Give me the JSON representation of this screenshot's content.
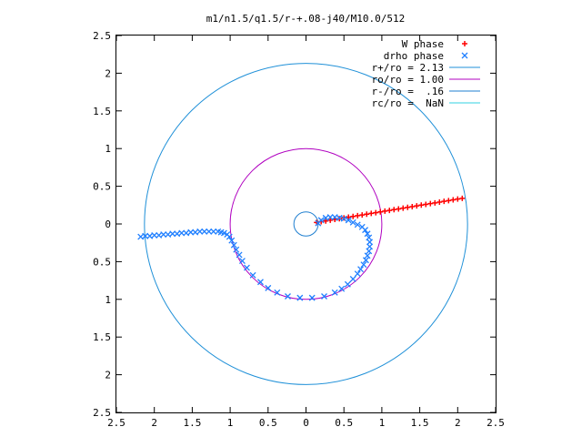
{
  "chart_data": {
    "type": "scatter",
    "title": "m1/n1.5/q1.5/r-+.08-j40/M10.0/512",
    "xlabel": "",
    "ylabel": "",
    "xlim": [
      -2.5,
      2.5
    ],
    "ylim": [
      -2.5,
      2.5
    ],
    "grid": false,
    "legend_position": "top-right",
    "x_ticks": [
      {
        "value": -2.5,
        "label": "2.5"
      },
      {
        "value": -2,
        "label": "2"
      },
      {
        "value": -1.5,
        "label": "1.5"
      },
      {
        "value": -1,
        "label": "1"
      },
      {
        "value": -0.5,
        "label": "0.5"
      },
      {
        "value": 0,
        "label": "0"
      },
      {
        "value": 0.5,
        "label": "0.5"
      },
      {
        "value": 1,
        "label": "1"
      },
      {
        "value": 1.5,
        "label": "1.5"
      },
      {
        "value": 2,
        "label": "2"
      },
      {
        "value": 2.5,
        "label": "2.5"
      }
    ],
    "y_ticks": [
      {
        "value": 2.5,
        "label": "2.5"
      },
      {
        "value": 2,
        "label": "2"
      },
      {
        "value": 1.5,
        "label": "1.5"
      },
      {
        "value": 1,
        "label": "1"
      },
      {
        "value": 0.5,
        "label": "0.5"
      },
      {
        "value": 0,
        "label": "0"
      },
      {
        "value": -0.5,
        "label": "0.5"
      },
      {
        "value": -1,
        "label": "1"
      },
      {
        "value": -1.5,
        "label": "1.5"
      },
      {
        "value": -2,
        "label": "2"
      },
      {
        "value": -2.5,
        "label": "2.5"
      }
    ],
    "series": [
      {
        "name": "W phase",
        "marker": "plus",
        "color": "#ff0000",
        "points": [
          [
            0.14,
            0.02
          ],
          [
            0.2,
            0.03
          ],
          [
            0.26,
            0.04
          ],
          [
            0.32,
            0.05
          ],
          [
            0.38,
            0.06
          ],
          [
            0.44,
            0.07
          ],
          [
            0.5,
            0.08
          ],
          [
            0.56,
            0.09
          ],
          [
            0.62,
            0.1
          ],
          [
            0.68,
            0.11
          ],
          [
            0.74,
            0.12
          ],
          [
            0.8,
            0.13
          ],
          [
            0.86,
            0.14
          ],
          [
            0.92,
            0.15
          ],
          [
            0.98,
            0.16
          ],
          [
            1.04,
            0.17
          ],
          [
            1.1,
            0.18
          ],
          [
            1.16,
            0.19
          ],
          [
            1.22,
            0.2
          ],
          [
            1.28,
            0.21
          ],
          [
            1.34,
            0.22
          ],
          [
            1.4,
            0.23
          ],
          [
            1.46,
            0.24
          ],
          [
            1.52,
            0.25
          ],
          [
            1.58,
            0.26
          ],
          [
            1.64,
            0.27
          ],
          [
            1.7,
            0.28
          ],
          [
            1.76,
            0.29
          ],
          [
            1.82,
            0.3
          ],
          [
            1.88,
            0.31
          ],
          [
            1.94,
            0.32
          ],
          [
            2.0,
            0.33
          ],
          [
            2.06,
            0.34
          ]
        ]
      },
      {
        "name": "drho phase",
        "marker": "cross",
        "color": "#1f7fff",
        "points": [
          [
            0.16,
            0.01
          ],
          [
            0.2,
            0.05
          ],
          [
            0.26,
            0.08
          ],
          [
            0.32,
            0.09
          ],
          [
            0.38,
            0.09
          ],
          [
            0.44,
            0.08
          ],
          [
            0.5,
            0.07
          ],
          [
            0.56,
            0.05
          ],
          [
            0.62,
            0.02
          ],
          [
            0.68,
            -0.01
          ],
          [
            0.74,
            -0.04
          ],
          [
            0.78,
            -0.08
          ],
          [
            0.81,
            -0.13
          ],
          [
            0.83,
            -0.18
          ],
          [
            0.84,
            -0.24
          ],
          [
            0.84,
            -0.3
          ],
          [
            0.83,
            -0.36
          ],
          [
            0.81,
            -0.42
          ],
          [
            0.79,
            -0.48
          ],
          [
            0.76,
            -0.54
          ],
          [
            0.72,
            -0.6
          ],
          [
            0.68,
            -0.66
          ],
          [
            0.62,
            -0.73
          ],
          [
            0.55,
            -0.8
          ],
          [
            0.47,
            -0.86
          ],
          [
            0.38,
            -0.91
          ],
          [
            0.24,
            -0.96
          ],
          [
            0.08,
            -0.98
          ],
          [
            -0.08,
            -0.98
          ],
          [
            -0.24,
            -0.96
          ],
          [
            -0.38,
            -0.91
          ],
          [
            -0.5,
            -0.85
          ],
          [
            -0.6,
            -0.77
          ],
          [
            -0.7,
            -0.68
          ],
          [
            -0.78,
            -0.58
          ],
          [
            -0.84,
            -0.49
          ],
          [
            -0.88,
            -0.41
          ],
          [
            -0.92,
            -0.34
          ],
          [
            -0.95,
            -0.28
          ],
          [
            -0.98,
            -0.22
          ],
          [
            -1.01,
            -0.17
          ],
          [
            -1.04,
            -0.14
          ],
          [
            -1.08,
            -0.12
          ],
          [
            -1.12,
            -0.11
          ],
          [
            -1.16,
            -0.1
          ],
          [
            -1.22,
            -0.1
          ],
          [
            -1.28,
            -0.1
          ],
          [
            -1.34,
            -0.1
          ],
          [
            -1.4,
            -0.1
          ],
          [
            -1.46,
            -0.11
          ],
          [
            -1.52,
            -0.11
          ],
          [
            -1.58,
            -0.12
          ],
          [
            -1.64,
            -0.12
          ],
          [
            -1.7,
            -0.13
          ],
          [
            -1.76,
            -0.13
          ],
          [
            -1.82,
            -0.14
          ],
          [
            -1.88,
            -0.14
          ],
          [
            -1.94,
            -0.15
          ],
          [
            -2.0,
            -0.15
          ],
          [
            -2.06,
            -0.16
          ],
          [
            -2.12,
            -0.16
          ],
          [
            -2.18,
            -0.17
          ]
        ]
      },
      {
        "name": "r+/ro = 2.13",
        "marker": "circle",
        "color": "#1f90d8",
        "radius": 2.13,
        "center": [
          0,
          0
        ]
      },
      {
        "name": "ro/ro = 1.00",
        "marker": "circle",
        "color": "#b000c0",
        "radius": 1.0,
        "center": [
          0,
          0
        ]
      },
      {
        "name": "r-/ro =  .16",
        "marker": "circle",
        "color": "#1f7fd0",
        "radius": 0.16,
        "center": [
          0,
          0
        ]
      },
      {
        "name": "rc/ro =  NaN",
        "marker": "circle",
        "color": "#30d0e0",
        "radius": null,
        "center": [
          0,
          0
        ]
      }
    ]
  }
}
